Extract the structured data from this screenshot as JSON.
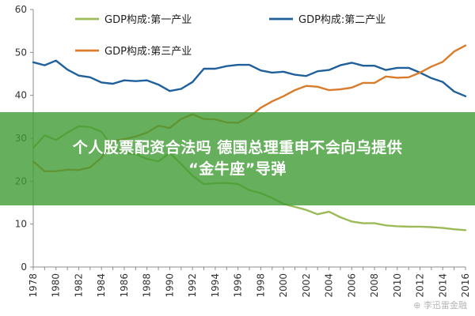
{
  "chart_data": {
    "type": "line",
    "title": "",
    "xlabel": "",
    "ylabel": "",
    "xlim": [
      1978,
      2016
    ],
    "ylim": [
      0,
      60
    ],
    "y_ticks": [
      0,
      10,
      20,
      30,
      40,
      50,
      60
    ],
    "x_ticks": [
      1978,
      1980,
      1982,
      1984,
      1986,
      1988,
      1990,
      1992,
      1994,
      1996,
      1998,
      2000,
      2002,
      2004,
      2006,
      2008,
      2010,
      2012,
      2014,
      2016
    ],
    "grid": false,
    "x": [
      1978,
      1979,
      1980,
      1981,
      1982,
      1983,
      1984,
      1985,
      1986,
      1987,
      1988,
      1989,
      1990,
      1991,
      1992,
      1993,
      1994,
      1995,
      1996,
      1997,
      1998,
      1999,
      2000,
      2001,
      2002,
      2003,
      2004,
      2005,
      2006,
      2007,
      2008,
      2009,
      2010,
      2011,
      2012,
      2013,
      2014,
      2015,
      2016
    ],
    "series": [
      {
        "name": "GDP构成:第一产业",
        "color": "#9bbb59",
        "values": [
          27.7,
          30.7,
          29.6,
          31.3,
          32.8,
          32.6,
          31.5,
          27.9,
          26.6,
          26.3,
          25.2,
          24.6,
          26.6,
          24.0,
          21.3,
          19.3,
          19.5,
          19.6,
          19.3,
          17.9,
          17.2,
          16.1,
          14.7,
          14.0,
          13.3,
          12.3,
          12.9,
          11.6,
          10.6,
          10.2,
          10.2,
          9.7,
          9.5,
          9.4,
          9.4,
          9.3,
          9.1,
          8.8,
          8.6
        ]
      },
      {
        "name": "GDP构成:第二产业",
        "color": "#1f5f9a",
        "values": [
          47.7,
          47.0,
          48.1,
          46.0,
          44.6,
          44.2,
          43.0,
          42.7,
          43.5,
          43.3,
          43.5,
          42.5,
          41.0,
          41.5,
          43.1,
          46.2,
          46.2,
          46.8,
          47.1,
          47.1,
          45.8,
          45.3,
          45.5,
          44.8,
          44.5,
          45.6,
          45.9,
          47.0,
          47.6,
          46.9,
          46.9,
          45.9,
          46.4,
          46.4,
          45.3,
          44.0,
          43.1,
          40.9,
          39.8
        ]
      },
      {
        "name": "GDP构成:第三产业",
        "color": "#d97b2b",
        "values": [
          24.6,
          22.3,
          22.3,
          22.7,
          22.6,
          23.2,
          25.5,
          29.4,
          29.8,
          30.4,
          31.3,
          32.9,
          32.4,
          34.5,
          35.6,
          34.5,
          34.4,
          33.7,
          33.6,
          35.0,
          37.1,
          38.6,
          39.8,
          41.2,
          42.2,
          42.0,
          41.2,
          41.4,
          41.8,
          42.9,
          42.9,
          44.4,
          44.1,
          44.2,
          45.3,
          46.7,
          47.8,
          50.2,
          51.6
        ]
      }
    ],
    "legend_position": "top"
  },
  "overlay": {
    "headline_line_1": "个人股票配资合法吗 德国总理重申不会向乌提供",
    "headline_line_2": "“金牛座”导弹",
    "band_color": "#409c34"
  },
  "watermark": "⊕ 李迅雷金融"
}
